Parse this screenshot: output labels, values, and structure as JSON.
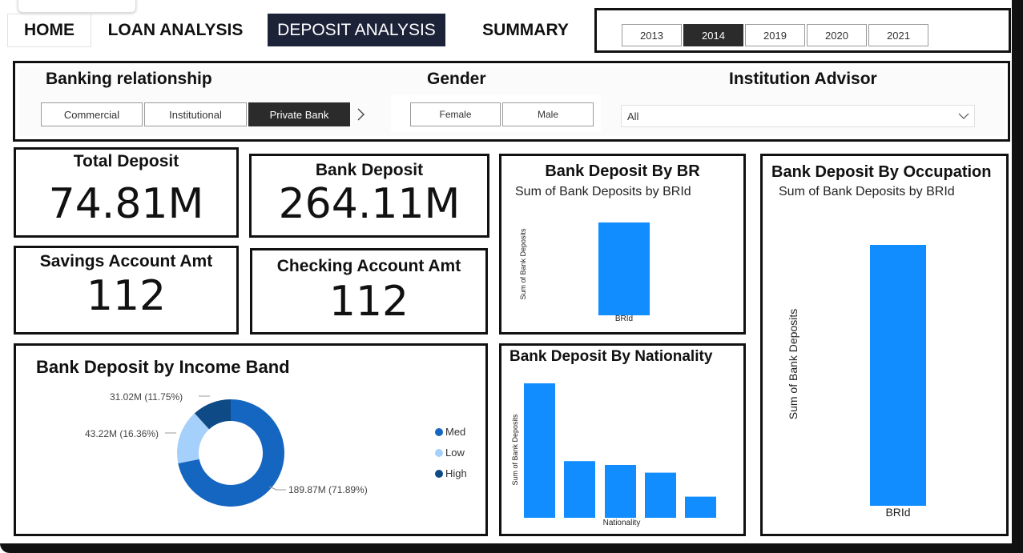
{
  "nav": {
    "home": "HOME",
    "loan": "LOAN ANALYSIS",
    "deposit": "DEPOSIT ANALYSIS",
    "summary": "SUMMARY",
    "more": "..."
  },
  "years": {
    "items": [
      "2013",
      "2014",
      "2019",
      "2020",
      "2021"
    ],
    "selected": "2014"
  },
  "filters": {
    "banking_relationship": {
      "title": "Banking relationship",
      "options": [
        "Commercial",
        "Institutional",
        "Private Bank"
      ],
      "selected": "Private Bank"
    },
    "gender": {
      "title": "Gender",
      "options": [
        "Female",
        "Male"
      ]
    },
    "institution_advisor": {
      "title": "Institution Advisor",
      "value": "All"
    }
  },
  "kpis": {
    "total_deposit": {
      "label": "Total Deposit",
      "value": "74.81M"
    },
    "bank_deposit": {
      "label": "Bank Deposit",
      "value": "264.11M"
    },
    "savings": {
      "label": "Savings Account Amt",
      "value": "112"
    },
    "checking": {
      "label": "Checking Account Amt",
      "value": "112"
    }
  },
  "colors": {
    "bar_blue": "#118DFF",
    "pie_med": "#1566c0",
    "pie_low": "#a4d0fb",
    "pie_high": "#0d4a86",
    "nav_active_bg": "#1c2238"
  },
  "chart_data": [
    {
      "id": "income_band",
      "type": "pie",
      "title": "Bank Deposit by Income Band",
      "slices": [
        {
          "name": "Med",
          "value": 189.87,
          "label": "189.87M (71.89%)"
        },
        {
          "name": "Low",
          "value": 43.22,
          "label": "43.22M (16.36%)"
        },
        {
          "name": "High",
          "value": 31.02,
          "label": "31.02M (11.75%)"
        }
      ],
      "legend": [
        "Med",
        "Low",
        "High"
      ]
    },
    {
      "id": "by_br",
      "type": "bar",
      "title": "Bank Deposit By BR",
      "subtitle": "Sum of Bank Deposits by BRId",
      "xlabel": "BRId",
      "ylabel": "Sum of Bank Deposits",
      "values": [
        1
      ]
    },
    {
      "id": "by_nationality",
      "type": "bar",
      "title": "Bank Deposit By Nationality",
      "xlabel": "Nationality",
      "ylabel": "Sum of Bank Deposits",
      "values": [
        140,
        59,
        55,
        47,
        22
      ]
    },
    {
      "id": "by_occupation",
      "type": "bar",
      "title": "Bank Deposit By Occupation",
      "subtitle": "Sum of Bank Deposits by BRId",
      "xlabel": "BRId",
      "ylabel": "Sum of Bank Deposits",
      "values": [
        1
      ]
    }
  ]
}
